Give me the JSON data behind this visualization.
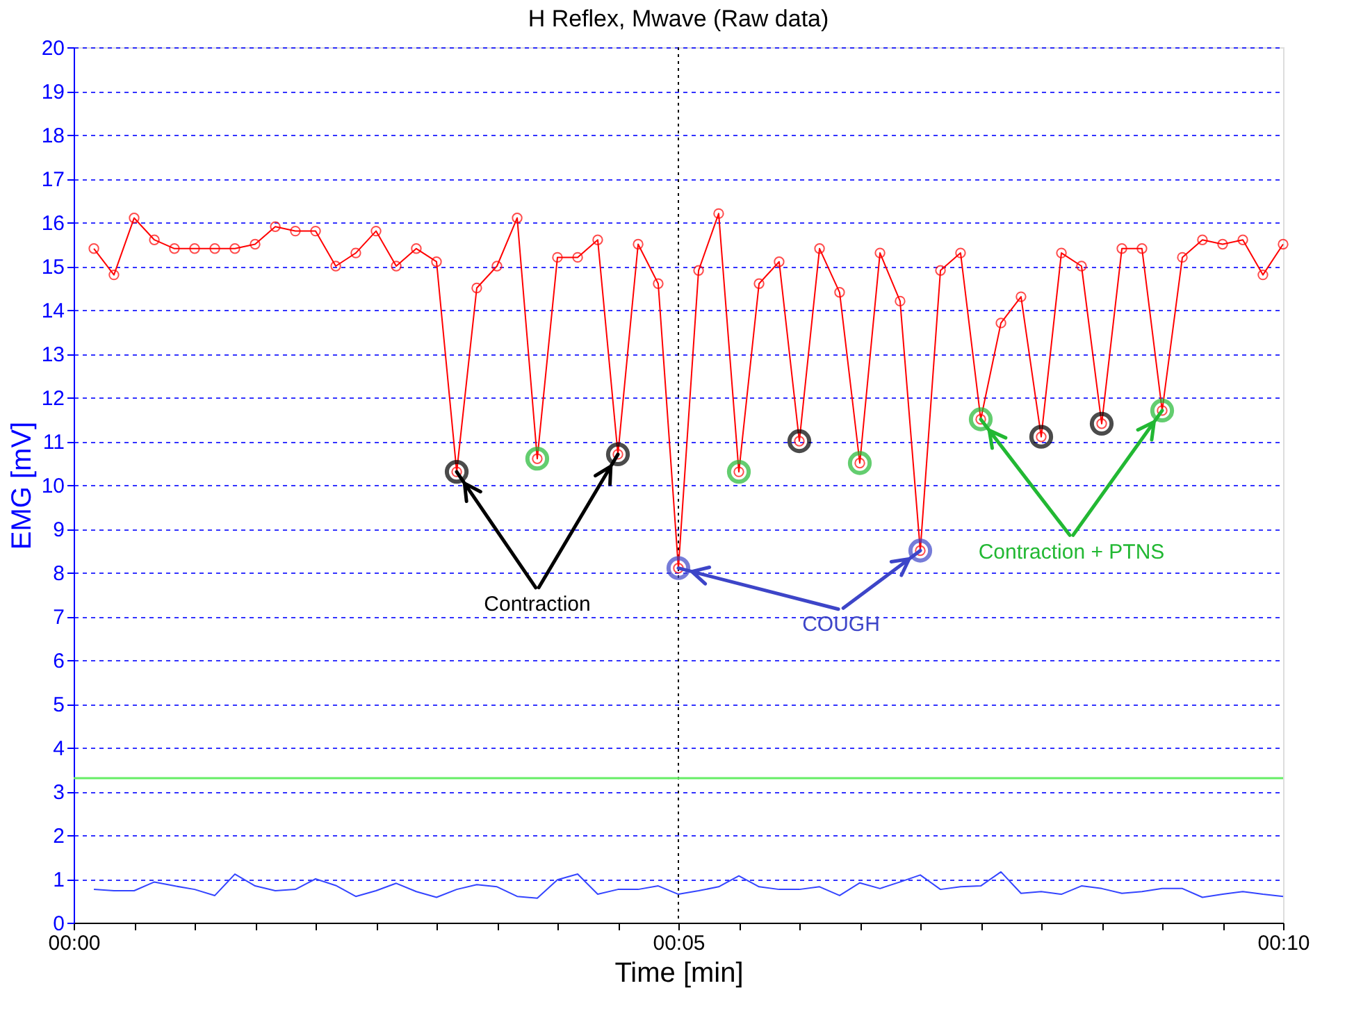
{
  "chart_data": {
    "type": "line",
    "title": "H Reflex, Mwave (Raw data)",
    "xlabel": "Time [min]",
    "ylabel": "EMG [mV]",
    "x": [
      0.167,
      0.333,
      0.5,
      0.667,
      0.833,
      1,
      1.167,
      1.333,
      1.5,
      1.667,
      1.833,
      2,
      2.167,
      2.333,
      2.5,
      2.667,
      2.833,
      3,
      3.167,
      3.333,
      3.5,
      3.667,
      3.833,
      4,
      4.167,
      4.333,
      4.5,
      4.667,
      4.833,
      5,
      5.167,
      5.333,
      5.5,
      5.667,
      5.833,
      6,
      6.167,
      6.333,
      6.5,
      6.667,
      6.833,
      7,
      7.167,
      7.333,
      7.5,
      7.667,
      7.833,
      8,
      8.167,
      8.333,
      8.5,
      8.667,
      8.833,
      9,
      9.167,
      9.333,
      9.5,
      9.667,
      9.833,
      10
    ],
    "series": [
      {
        "color": "#ff0000",
        "marker": "circle",
        "values": [
          15.4,
          14.8,
          16.1,
          15.6,
          15.4,
          15.4,
          15.4,
          15.4,
          15.5,
          15.9,
          15.8,
          15.8,
          15.0,
          15.3,
          15.8,
          15.0,
          15.4,
          15.1,
          10.3,
          14.5,
          15.0,
          16.1,
          10.6,
          15.2,
          15.2,
          15.6,
          10.7,
          15.5,
          14.6,
          8.1,
          14.9,
          16.2,
          10.3,
          14.6,
          15.1,
          11.0,
          15.4,
          14.4,
          10.5,
          15.3,
          14.2,
          8.5,
          14.9,
          15.3,
          11.5,
          13.7,
          14.3,
          11.1,
          15.3,
          15.0,
          11.4,
          15.4,
          15.4,
          11.7,
          15.2,
          15.6,
          15.5,
          15.6,
          14.8,
          15.5
        ]
      },
      {
        "color": "#3344ff",
        "marker": "none",
        "values": [
          0.76,
          0.73,
          0.73,
          0.93,
          0.84,
          0.76,
          0.62,
          1.11,
          0.84,
          0.73,
          0.76,
          1.0,
          0.85,
          0.6,
          0.73,
          0.9,
          0.71,
          0.58,
          0.76,
          0.87,
          0.82,
          0.6,
          0.56,
          0.98,
          1.11,
          0.65,
          0.76,
          0.76,
          0.84,
          0.65,
          0.73,
          0.82,
          1.07,
          0.82,
          0.76,
          0.76,
          0.82,
          0.62,
          0.91,
          0.78,
          0.93,
          1.09,
          0.76,
          0.82,
          0.84,
          1.16,
          0.67,
          0.71,
          0.65,
          0.84,
          0.78,
          0.67,
          0.71,
          0.78,
          0.78,
          0.58,
          0.65,
          0.71,
          0.65,
          0.6
        ]
      },
      {
        "type": "scatter",
        "color": "#000000",
        "marker": "circle",
        "x": [
          3.167,
          4.5
        ],
        "values": [
          10.3,
          10.7
        ]
      },
      {
        "type": "scatter",
        "color": "#3d45c8",
        "marker": "circle",
        "x": [
          5,
          7
        ],
        "values": [
          8.1,
          8.5
        ]
      },
      {
        "type": "scatter",
        "color": "#22b833",
        "marker": "circle",
        "x": [
          7.5,
          9
        ],
        "values": [
          11.5,
          11.7
        ]
      },
      {
        "type": "scatter",
        "color": "#000000",
        "marker": "circle",
        "x": [
          6,
          8,
          8.5
        ],
        "values": [
          11.0,
          11.1,
          11.4
        ]
      },
      {
        "type": "scatter",
        "color": "#22b833",
        "marker": "circle",
        "x": [
          3.833,
          5.5,
          6.5
        ],
        "values": [
          10.6,
          10.3,
          10.5
        ]
      }
    ],
    "annotations": [
      {
        "text": "Contraction",
        "x": 3.167,
        "y": 10.3
      },
      {
        "text": "COUGH",
        "x": 5,
        "y": 8.1
      },
      {
        "text": "Contraction + PTNS",
        "x": 7.5,
        "y": 11.5
      }
    ],
    "ref_lines": [
      {
        "axis": "x",
        "value": 5,
        "color": "#000000",
        "line_style": "dotted"
      },
      {
        "axis": "y",
        "value": 3.3,
        "color": "#66ee66",
        "line_style": "solid"
      }
    ],
    "xlim": [
      0,
      10
    ],
    "ylim": [
      0,
      20
    ],
    "xticks": [
      {
        "value": 0,
        "label": "00:00"
      },
      {
        "value": 0.5,
        "label": null
      },
      {
        "value": 1,
        "label": null
      },
      {
        "value": 1.5,
        "label": null
      },
      {
        "value": 2,
        "label": null
      },
      {
        "value": 2.5,
        "label": null
      },
      {
        "value": 3,
        "label": null
      },
      {
        "value": 3.5,
        "label": null
      },
      {
        "value": 4,
        "label": null
      },
      {
        "value": 4.5,
        "label": null
      },
      {
        "value": 5,
        "label": "00:05"
      },
      {
        "value": 5.5,
        "label": null
      },
      {
        "value": 6,
        "label": null
      },
      {
        "value": 6.5,
        "label": null
      },
      {
        "value": 7,
        "label": null
      },
      {
        "value": 7.5,
        "label": null
      },
      {
        "value": 8,
        "label": null
      },
      {
        "value": 8.5,
        "label": null
      },
      {
        "value": 9,
        "label": null
      },
      {
        "value": 9.5,
        "label": null
      },
      {
        "value": 10,
        "label": "00:10"
      }
    ],
    "yticks": [
      0,
      1,
      2,
      3,
      4,
      5,
      6,
      7,
      8,
      9,
      10,
      11,
      12,
      13,
      14,
      15,
      16,
      17,
      18,
      19,
      20
    ],
    "grid": "y"
  }
}
